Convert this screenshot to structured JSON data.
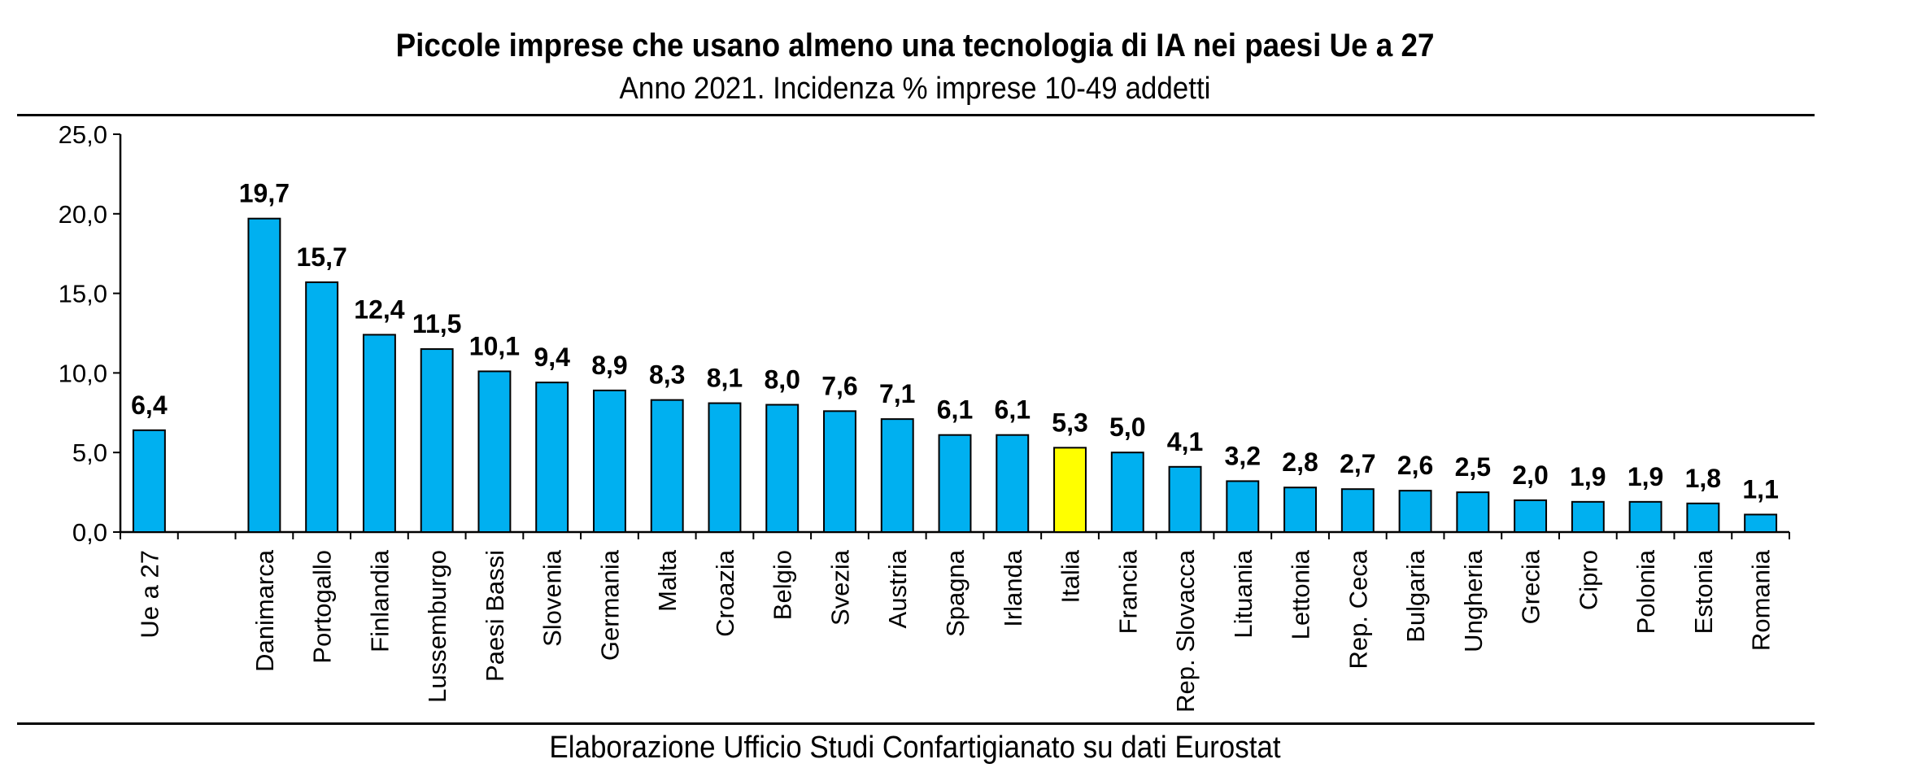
{
  "title": "Piccole imprese che usano almeno una tecnologia di IA nei paesi Ue a 27",
  "subtitle": "Anno 2021. Incidenza % imprese 10-49 addetti",
  "source": "Elaborazione Ufficio Studi Confartigianato su dati Eurostat",
  "colors": {
    "bar": "#00B0F0",
    "highlight": "#FFFF00",
    "outline": "#000000"
  },
  "chart_data": {
    "type": "bar",
    "categories": [
      "Ue a 27",
      "",
      "Danimarca",
      "Portogallo",
      "Finlandia",
      "Lussemburgo",
      "Paesi Bassi",
      "Slovenia",
      "Germania",
      "Malta",
      "Croazia",
      "Belgio",
      "Svezia",
      "Austria",
      "Spagna",
      "Irlanda",
      "Italia",
      "Francia",
      "Rep. Slovacca",
      "Lituania",
      "Lettonia",
      "Rep. Ceca",
      "Bulgaria",
      "Ungheria",
      "Grecia",
      "Cipro",
      "Polonia",
      "Estonia",
      "Romania"
    ],
    "values": [
      6.4,
      null,
      19.7,
      15.7,
      12.4,
      11.5,
      10.1,
      9.4,
      8.9,
      8.3,
      8.1,
      8.0,
      7.6,
      7.1,
      6.1,
      6.1,
      5.3,
      5.0,
      4.1,
      3.2,
      2.8,
      2.7,
      2.6,
      2.5,
      2.0,
      1.9,
      1.9,
      1.8,
      1.1
    ],
    "value_labels": [
      "6,4",
      "",
      "19,7",
      "15,7",
      "12,4",
      "11,5",
      "10,1",
      "9,4",
      "8,9",
      "8,3",
      "8,1",
      "8,0",
      "7,6",
      "7,1",
      "6,1",
      "6,1",
      "5,3",
      "5,0",
      "4,1",
      "3,2",
      "2,8",
      "2,7",
      "2,6",
      "2,5",
      "2,0",
      "1,9",
      "1,9",
      "1,8",
      "1,1"
    ],
    "highlight": "Italia",
    "yticks": [
      "0,0",
      "5,0",
      "10,0",
      "15,0",
      "20,0",
      "25,0"
    ],
    "ylim": [
      0,
      25
    ],
    "grid": false,
    "xlabel": "",
    "ylabel": ""
  }
}
